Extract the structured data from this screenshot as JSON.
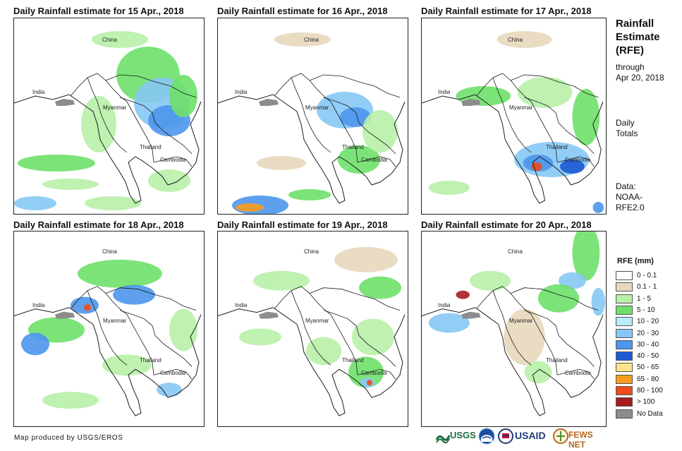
{
  "panels": [
    {
      "title": "Daily Rainfall estimate for 15 Apr., 2018"
    },
    {
      "title": "Daily Rainfall estimate for 16 Apr., 2018"
    },
    {
      "title": "Daily Rainfall estimate for 17 Apr., 2018"
    },
    {
      "title": "Daily Rainfall estimate for 18 Apr., 2018"
    },
    {
      "title": "Daily Rainfall estimate for 19 Apr., 2018"
    },
    {
      "title": "Daily Rainfall estimate for 20 Apr., 2018"
    }
  ],
  "map_labels": {
    "china": "China",
    "india": "India",
    "myanmar": "Myanmar",
    "thailand": "Thailand",
    "cambodia": "Cambodia"
  },
  "sidebar": {
    "title_line1": "Rainfall",
    "title_line2": "Estimate",
    "title_line3": "(RFE)",
    "through": "through",
    "date": "Apr 20, 2018",
    "daily": "Daily",
    "totals": "Totals",
    "data_label": "Data:",
    "source_line1": "NOAA-",
    "source_line2": "RFE2.0"
  },
  "legend": {
    "title": "RFE (mm)",
    "items": [
      {
        "label": "0 - 0.1",
        "color": "#ffffff"
      },
      {
        "label": "0.1 - 1",
        "color": "#e8d8bc"
      },
      {
        "label": "1 - 5",
        "color": "#b8f0a8"
      },
      {
        "label": "5 - 10",
        "color": "#6ee06a"
      },
      {
        "label": "10 - 20",
        "color": "#b8ecf8"
      },
      {
        "label": "20 - 30",
        "color": "#86c8f4"
      },
      {
        "label": "30 - 40",
        "color": "#4c96ec"
      },
      {
        "label": "40 - 50",
        "color": "#1c5ad4"
      },
      {
        "label": "50 - 65",
        "color": "#fce48c"
      },
      {
        "label": "65 - 80",
        "color": "#f89c1c"
      },
      {
        "label": "80 - 100",
        "color": "#f04c18"
      },
      {
        "label": "> 100",
        "color": "#a81c1c"
      },
      {
        "label": "No Data",
        "color": "#8c8c8c"
      }
    ]
  },
  "credit": "Map produced by USGS/EROS",
  "logos": {
    "usgs": "USGS",
    "usaid": "USAID",
    "fewsnet": "FEWS NET"
  }
}
